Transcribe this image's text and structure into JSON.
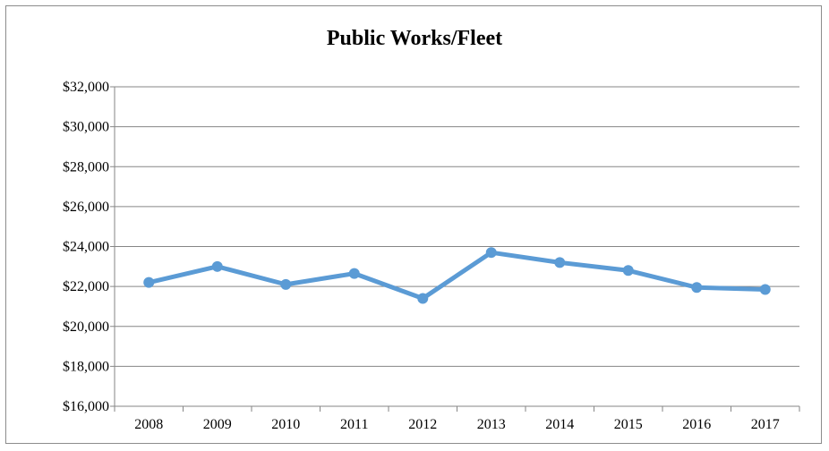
{
  "chart_data": {
    "type": "line",
    "title": "Public Works/Fleet",
    "xlabel": "",
    "ylabel": "",
    "categories": [
      "2008",
      "2009",
      "2010",
      "2011",
      "2012",
      "2013",
      "2014",
      "2015",
      "2016",
      "2017"
    ],
    "series": [
      {
        "values": [
          22200,
          23000,
          22100,
          22650,
          21400,
          23700,
          23200,
          22800,
          21950,
          21850
        ]
      }
    ],
    "ylim": [
      16000,
      32000
    ],
    "yticks": [
      16000,
      18000,
      20000,
      22000,
      24000,
      26000,
      28000,
      30000,
      32000
    ],
    "ytick_labels": [
      "$16,000",
      "$18,000",
      "$20,000",
      "$22,000",
      "$24,000",
      "$26,000",
      "$28,000",
      "$30,000",
      "$32,000"
    ],
    "grid": true,
    "legend": "none",
    "colors": {
      "line": "#5b9bd5",
      "grid": "#868686",
      "axis": "#868686",
      "frame": "#8c8c8c"
    }
  }
}
